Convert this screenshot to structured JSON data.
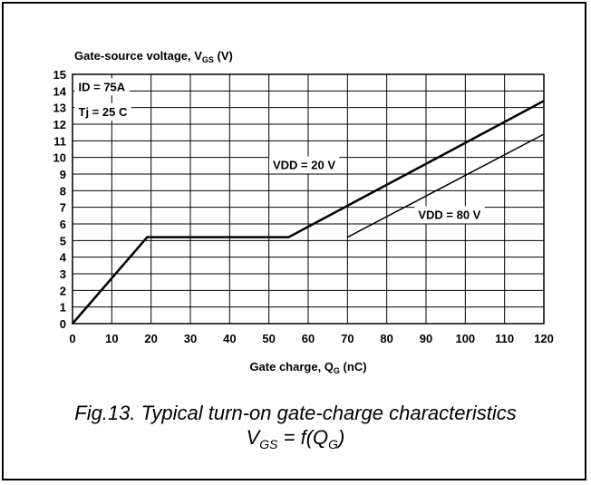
{
  "chart_data": {
    "type": "line",
    "ylabel_main": "Gate-source voltage, V",
    "ylabel_sub": "GS",
    "ylabel_unit": " (V)",
    "xlabel_main": "Gate charge, Q",
    "xlabel_sub": "G",
    "xlabel_unit": " (nC)",
    "xlim": [
      0,
      120
    ],
    "ylim": [
      0,
      15
    ],
    "xticks": [
      0,
      10,
      20,
      30,
      40,
      50,
      60,
      70,
      80,
      90,
      100,
      110,
      120
    ],
    "yticks": [
      0,
      1,
      2,
      3,
      4,
      5,
      6,
      7,
      8,
      9,
      10,
      11,
      12,
      13,
      14,
      15
    ],
    "grid": true,
    "annotations": [
      {
        "text": "ID = 75A",
        "x": 1.5,
        "y": 14
      },
      {
        "text": "Tj = 25 C",
        "x": 1.5,
        "y": 12.5
      }
    ],
    "series": [
      {
        "name": "VDD = 20 V",
        "label_at": {
          "x": 51,
          "y": 9.3
        },
        "x": [
          0,
          19,
          55,
          120
        ],
        "y": [
          0,
          5.2,
          5.2,
          13.4
        ],
        "stroke_width": 2.5
      },
      {
        "name": "VDD = 80 V",
        "label_at": {
          "x": 88,
          "y": 6.3
        },
        "x": [
          70,
          120
        ],
        "y": [
          5.2,
          11.4
        ],
        "stroke_width": 1.5
      }
    ]
  },
  "caption": {
    "line1": "Fig.13.  Typical turn-on gate-charge characteristics",
    "line2_pre": "V",
    "line2_sub": "GS",
    "line2_mid": " = f(Q",
    "line2_sub2": "G",
    "line2_post": ")"
  }
}
